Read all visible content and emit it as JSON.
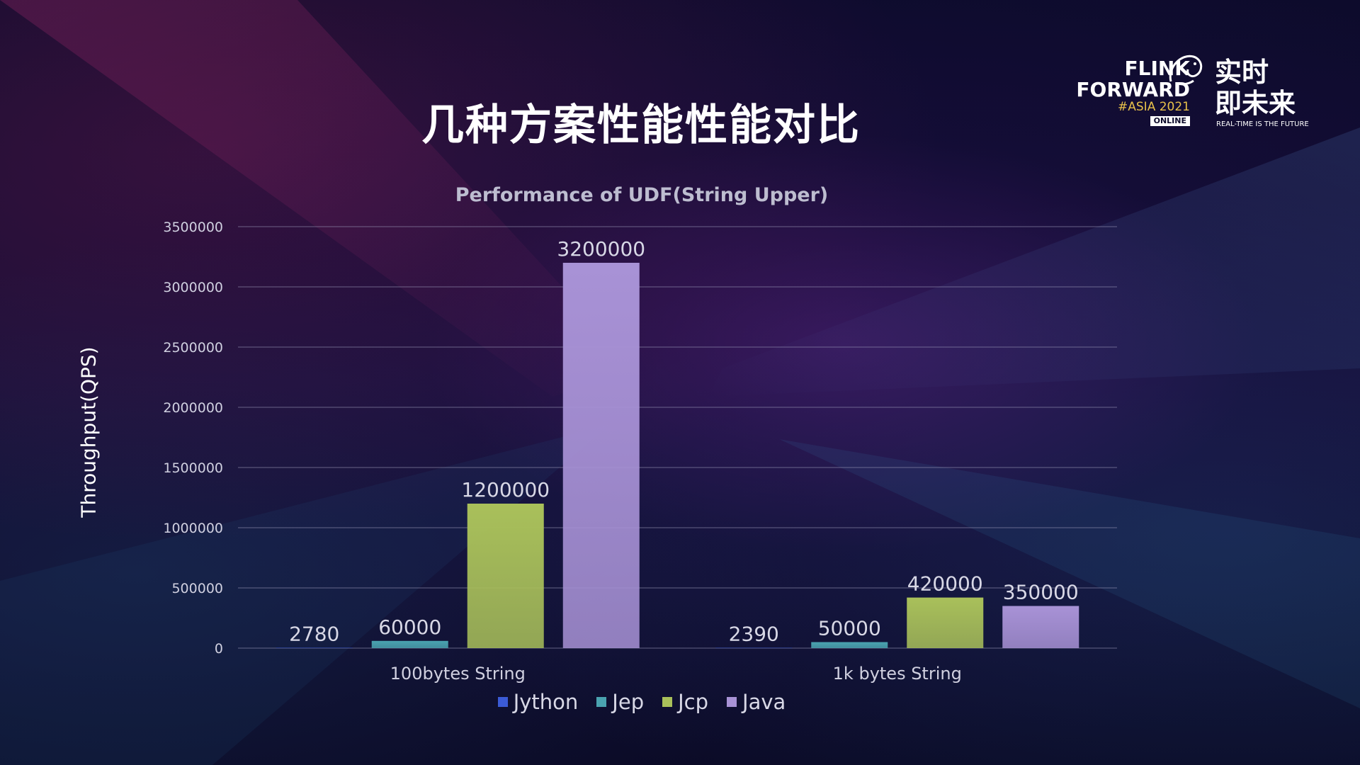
{
  "slide": {
    "title": "几种方案性能性能对比"
  },
  "logo": {
    "line1": "FLINK",
    "line2": "FORWARD",
    "event": "#ASIA 2021",
    "badge": "ONLINE",
    "cn_line1": "实时",
    "cn_line2": "即未来",
    "tagline": "REAL-TIME IS THE FUTURE"
  },
  "chart_data": {
    "type": "bar",
    "title": "Performance of UDF(String Upper)",
    "xlabel": "",
    "ylabel": "Throughput(QPS)",
    "categories": [
      "100bytes String",
      "1k bytes String"
    ],
    "series": [
      {
        "name": "Jython",
        "values": [
          2780,
          2390
        ],
        "color": "#3b5bd6"
      },
      {
        "name": "Jep",
        "values": [
          60000,
          50000
        ],
        "color": "#4aa3b0"
      },
      {
        "name": "Jcp",
        "values": [
          1200000,
          420000
        ],
        "color": "#a9c05a"
      },
      {
        "name": "Java",
        "values": [
          3200000,
          350000
        ],
        "color": "#a892d6"
      }
    ],
    "ylim": [
      0,
      3500000
    ],
    "yticks": [
      0,
      500000,
      1000000,
      1500000,
      2000000,
      2500000,
      3000000,
      3500000
    ],
    "data_labels": [
      [
        "2780",
        "60000",
        "1200000",
        "3200000"
      ],
      [
        "2390",
        "50000",
        "420000",
        "350000"
      ]
    ],
    "grid": true,
    "legend_position": "bottom"
  }
}
